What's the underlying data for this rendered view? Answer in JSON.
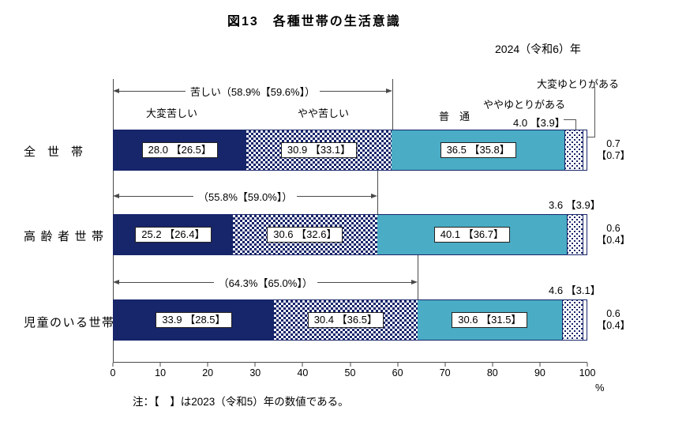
{
  "title": "図13　各種世帯の生活意識",
  "year_label": "2024（令和6）年",
  "note": "注：【　】は2023（令和5）年の数値である。",
  "colors": {
    "navy": "#17256A",
    "teal": "#4AACC5"
  },
  "axis": {
    "unit": "%",
    "ticks": [
      0,
      10,
      20,
      30,
      40,
      50,
      60,
      70,
      80,
      90,
      100
    ]
  },
  "legend": {
    "very_hard": "大変苦しい",
    "somewhat_hard": "やや苦しい",
    "normal": "普　通",
    "somewhat_comfortable": "ややゆとりがある",
    "somewhat_comfortable_value": "4.0 【3.9】",
    "very_comfortable": "大変ゆとりがある"
  },
  "chart_data": {
    "type": "bar",
    "orientation": "horizontal",
    "title": "図13　各種世帯の生活意識",
    "unit": "%",
    "xlim": [
      0,
      100
    ],
    "x_ticks": [
      0,
      10,
      20,
      30,
      40,
      50,
      60,
      70,
      80,
      90,
      100
    ],
    "current_year": "2024（令和6）年",
    "bracket_year_note": "【】 = 2023（令和5）年",
    "segment_names": [
      "大変苦しい",
      "やや苦しい",
      "普通",
      "ややゆとりがある",
      "大変ゆとりがある"
    ],
    "rows": [
      {
        "category": "全　世　帯",
        "bracket_label": "苦しい（58.9%【59.6%】）",
        "bracket_span": 58.9,
        "values": [
          28.0,
          30.9,
          36.5,
          4.0,
          0.7
        ],
        "prev_values": [
          26.5,
          33.1,
          35.8,
          3.9,
          0.7
        ],
        "labels": [
          "28.0 【26.5】",
          "30.9 【33.1】",
          "36.5 【35.8】"
        ],
        "outside_labels": {
          "dots": "4.0 【3.9】",
          "end_line1": "0.7",
          "end_line2": "【0.7】"
        }
      },
      {
        "category": "高齢者世帯",
        "bracket_label": "（55.8%【59.0%】）",
        "bracket_span": 55.8,
        "values": [
          25.2,
          30.6,
          40.1,
          3.6,
          0.6
        ],
        "prev_values": [
          26.4,
          32.6,
          36.7,
          3.9,
          0.4
        ],
        "labels": [
          "25.2 【26.4】",
          "30.6 【32.6】",
          "40.1 【36.7】"
        ],
        "outside_labels": {
          "dots": "3.6 【3.9】",
          "end_line1": "0.6",
          "end_line2": "【0.4】"
        }
      },
      {
        "category": "児童のいる世帯",
        "bracket_label": "（64.3%【65.0%】）",
        "bracket_span": 64.3,
        "values": [
          33.9,
          30.4,
          30.6,
          4.6,
          0.6
        ],
        "prev_values": [
          28.5,
          36.5,
          31.5,
          3.1,
          0.4
        ],
        "labels": [
          "33.9 【28.5】",
          "30.4 【36.5】",
          "30.6 【31.5】"
        ],
        "outside_labels": {
          "dots": "4.6 【3.1】",
          "end_line1": "0.6",
          "end_line2": "【0.4】"
        }
      }
    ]
  }
}
